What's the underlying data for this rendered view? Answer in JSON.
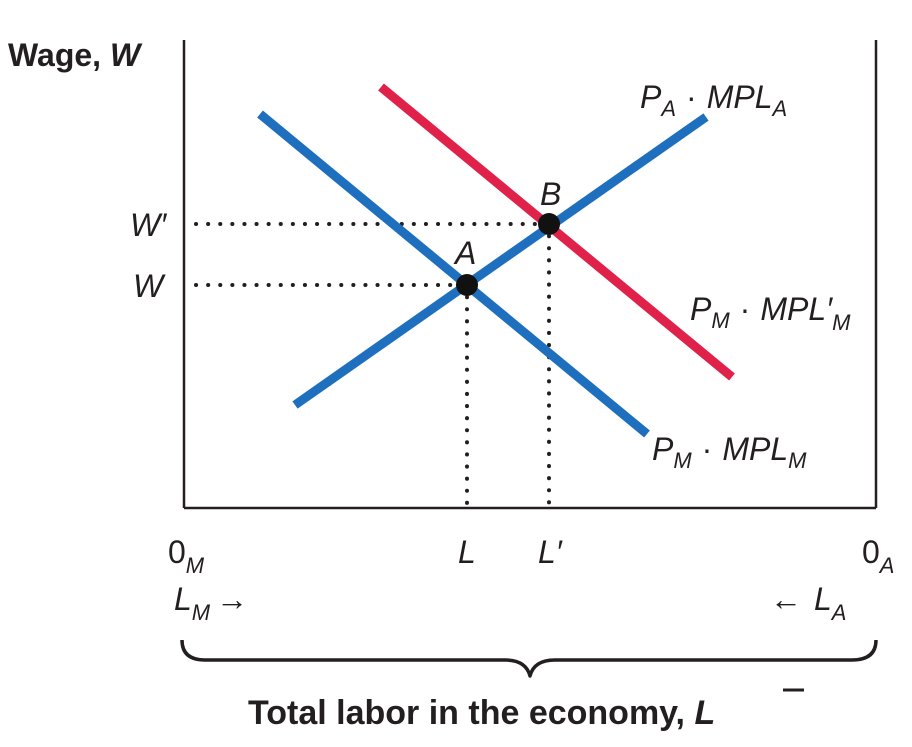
{
  "diagram": {
    "y_axis": {
      "label_text": "Wage, ",
      "label_var": "W"
    },
    "x_axis": {
      "caption_text": "Total labor in the economy, ",
      "caption_var": "L",
      "origin_left": {
        "base": "0",
        "sub": "M"
      },
      "origin_right": {
        "base": "0",
        "sub": "A"
      },
      "flow_left": {
        "base": "L",
        "sub": "M",
        "arrow": "→"
      },
      "flow_right": {
        "base": "L",
        "sub": "A",
        "arrow": "←"
      }
    },
    "wage_ticks": {
      "w_prime": "W′",
      "w": "W"
    },
    "labor_ticks": {
      "l": "L",
      "l_prime": "L′"
    },
    "points": {
      "a": "A",
      "b": "B"
    },
    "curves": {
      "agriculture": {
        "p": "P",
        "p_sub": "A",
        "dot": "·",
        "mpl": "MPL",
        "mpl_sub": "A",
        "color": "#1f6fbf"
      },
      "manufacturing": {
        "p": "P",
        "p_sub": "M",
        "dot": "·",
        "mpl": "MPL",
        "mpl_sub": "M",
        "color": "#1f6fbf"
      },
      "manufacturing_new": {
        "p": "P",
        "p_sub": "M",
        "dot": "·",
        "mpl": "MPL",
        "prime": "′",
        "mpl_sub": "M",
        "color": "#e0224b"
      }
    },
    "colors": {
      "axis": "#231f20",
      "dot": "#111111"
    }
  }
}
